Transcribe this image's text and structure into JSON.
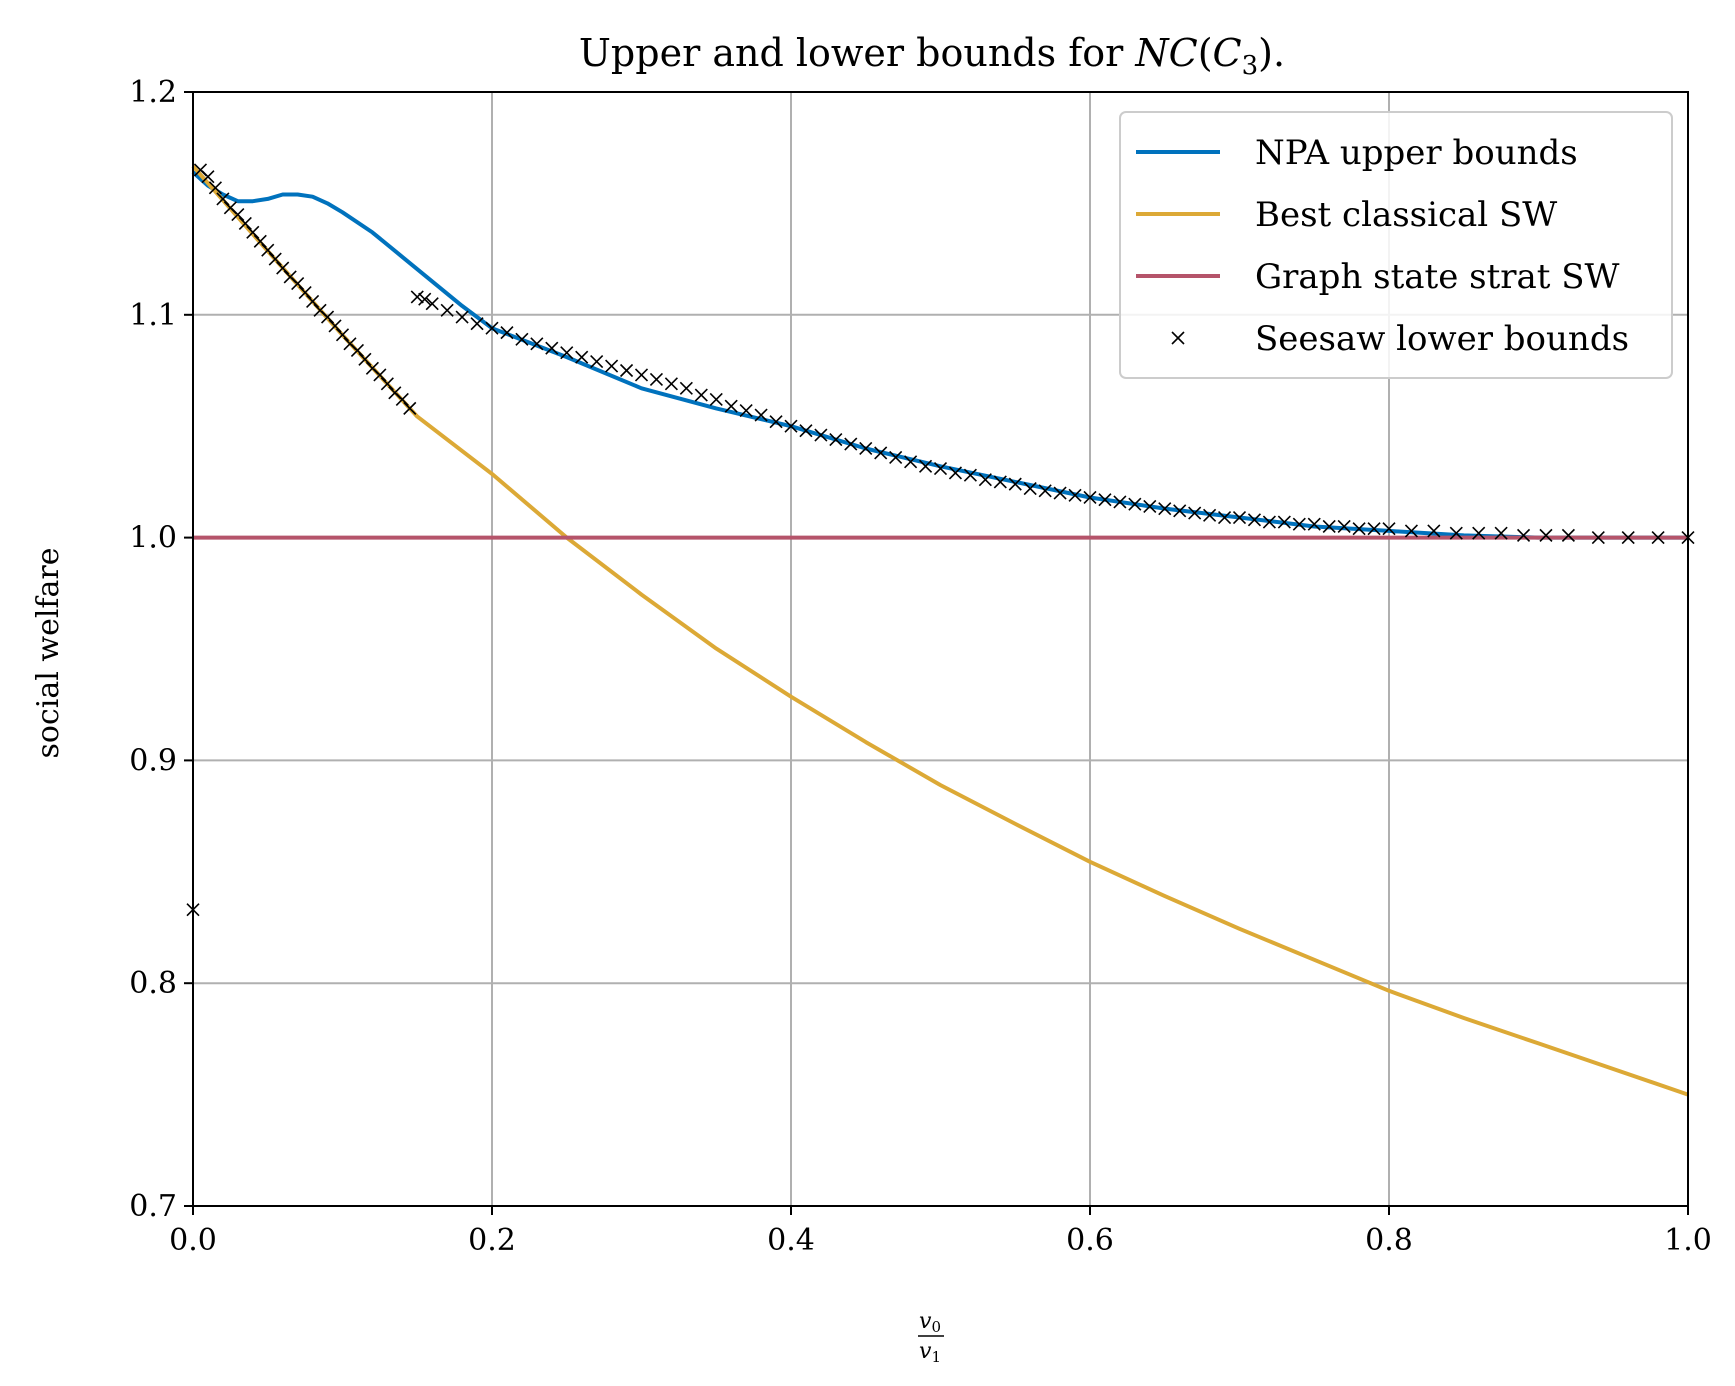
{
  "chart_data": {
    "type": "line",
    "title": {
      "prefix": "Upper and lower bounds for ",
      "math_main": "NC",
      "math_open": "(",
      "math_c": "C",
      "math_sub": "3",
      "math_close": ").",
      "full": "Upper and lower bounds for NC(C3)."
    },
    "xlabel": {
      "numerator": "v",
      "numerator_sub": "0",
      "denominator": "v",
      "denominator_sub": "1"
    },
    "ylabel": "social welfare",
    "xlim": [
      0.0,
      1.0
    ],
    "ylim": [
      0.7,
      1.2
    ],
    "xticks": [
      "0.0",
      "0.2",
      "0.4",
      "0.6",
      "0.8",
      "1.0"
    ],
    "yticks": [
      "0.7",
      "0.8",
      "0.9",
      "1.0",
      "1.1",
      "1.2"
    ],
    "grid": true,
    "legend_position": "top-right",
    "series": [
      {
        "name": "NPA upper bounds",
        "kind": "line",
        "color": "#0072BD",
        "x": [
          0.0,
          0.01,
          0.02,
          0.03,
          0.04,
          0.05,
          0.06,
          0.07,
          0.08,
          0.09,
          0.1,
          0.12,
          0.14,
          0.16,
          0.18,
          0.2,
          0.25,
          0.3,
          0.35,
          0.4,
          0.45,
          0.5,
          0.55,
          0.6,
          0.65,
          0.7,
          0.75,
          0.8,
          0.85,
          0.9,
          0.95,
          1.0
        ],
        "y": [
          1.164,
          1.158,
          1.154,
          1.151,
          1.151,
          1.152,
          1.154,
          1.154,
          1.153,
          1.15,
          1.146,
          1.137,
          1.126,
          1.115,
          1.104,
          1.094,
          1.081,
          1.067,
          1.058,
          1.05,
          1.04,
          1.032,
          1.025,
          1.018,
          1.013,
          1.009,
          1.005,
          1.003,
          1.001,
          1.0,
          1.0,
          1.0
        ]
      },
      {
        "name": "Best classical SW",
        "kind": "line",
        "color": "#DCA936",
        "x": [
          0.0,
          0.05,
          0.1,
          0.15,
          0.2,
          0.25,
          0.3,
          0.35,
          0.4,
          0.45,
          0.5,
          0.55,
          0.6,
          0.65,
          0.7,
          0.75,
          0.8,
          0.85,
          0.9,
          0.95,
          1.0
        ],
        "y": [
          1.1667,
          1.1286,
          1.0909,
          1.0543,
          1.0286,
          1.0,
          0.9744,
          0.9502,
          0.9286,
          0.9082,
          0.8889,
          0.8715,
          0.8545,
          0.8391,
          0.8244,
          0.8105,
          0.7966,
          0.7844,
          0.773,
          0.7615,
          0.75
        ]
      },
      {
        "name": "Graph state strat SW",
        "kind": "line",
        "color": "#B5546A",
        "x": [
          0.0,
          1.0
        ],
        "y": [
          1.0,
          1.0
        ]
      },
      {
        "name": "Seesaw lower bounds",
        "kind": "scatter",
        "marker": "x",
        "color": "#000000",
        "x": [
          0.0,
          0.005,
          0.01,
          0.015,
          0.02,
          0.025,
          0.03,
          0.035,
          0.04,
          0.045,
          0.05,
          0.055,
          0.06,
          0.065,
          0.07,
          0.075,
          0.08,
          0.085,
          0.09,
          0.095,
          0.1,
          0.105,
          0.11,
          0.115,
          0.12,
          0.125,
          0.13,
          0.135,
          0.14,
          0.145,
          0.15,
          0.155,
          0.16,
          0.17,
          0.18,
          0.19,
          0.2,
          0.21,
          0.22,
          0.23,
          0.24,
          0.25,
          0.26,
          0.27,
          0.28,
          0.29,
          0.3,
          0.31,
          0.32,
          0.33,
          0.34,
          0.35,
          0.36,
          0.37,
          0.38,
          0.39,
          0.4,
          0.41,
          0.42,
          0.43,
          0.44,
          0.45,
          0.46,
          0.47,
          0.48,
          0.49,
          0.5,
          0.51,
          0.52,
          0.53,
          0.54,
          0.55,
          0.56,
          0.57,
          0.58,
          0.59,
          0.6,
          0.61,
          0.62,
          0.63,
          0.64,
          0.65,
          0.66,
          0.67,
          0.68,
          0.69,
          0.7,
          0.71,
          0.72,
          0.73,
          0.74,
          0.75,
          0.76,
          0.77,
          0.78,
          0.79,
          0.8,
          0.815,
          0.83,
          0.845,
          0.86,
          0.875,
          0.89,
          0.905,
          0.92,
          0.94,
          0.96,
          0.98,
          1.0
        ],
        "y": [
          0.833,
          1.165,
          1.162,
          1.157,
          1.152,
          1.148,
          1.145,
          1.141,
          1.137,
          1.133,
          1.129,
          1.125,
          1.121,
          1.117,
          1.114,
          1.11,
          1.106,
          1.102,
          1.099,
          1.095,
          1.091,
          1.087,
          1.084,
          1.08,
          1.076,
          1.073,
          1.069,
          1.065,
          1.062,
          1.058,
          1.108,
          1.107,
          1.105,
          1.102,
          1.099,
          1.096,
          1.094,
          1.092,
          1.089,
          1.087,
          1.085,
          1.083,
          1.081,
          1.079,
          1.077,
          1.075,
          1.073,
          1.071,
          1.069,
          1.067,
          1.064,
          1.062,
          1.059,
          1.057,
          1.055,
          1.052,
          1.05,
          1.048,
          1.046,
          1.044,
          1.042,
          1.04,
          1.038,
          1.036,
          1.034,
          1.032,
          1.031,
          1.029,
          1.028,
          1.026,
          1.025,
          1.024,
          1.022,
          1.021,
          1.02,
          1.019,
          1.018,
          1.017,
          1.016,
          1.015,
          1.014,
          1.013,
          1.012,
          1.011,
          1.01,
          1.009,
          1.009,
          1.008,
          1.007,
          1.007,
          1.006,
          1.006,
          1.005,
          1.005,
          1.004,
          1.004,
          1.004,
          1.003,
          1.003,
          1.002,
          1.002,
          1.002,
          1.001,
          1.001,
          1.001,
          1.0,
          1.0,
          1.0,
          1.0
        ]
      }
    ]
  }
}
